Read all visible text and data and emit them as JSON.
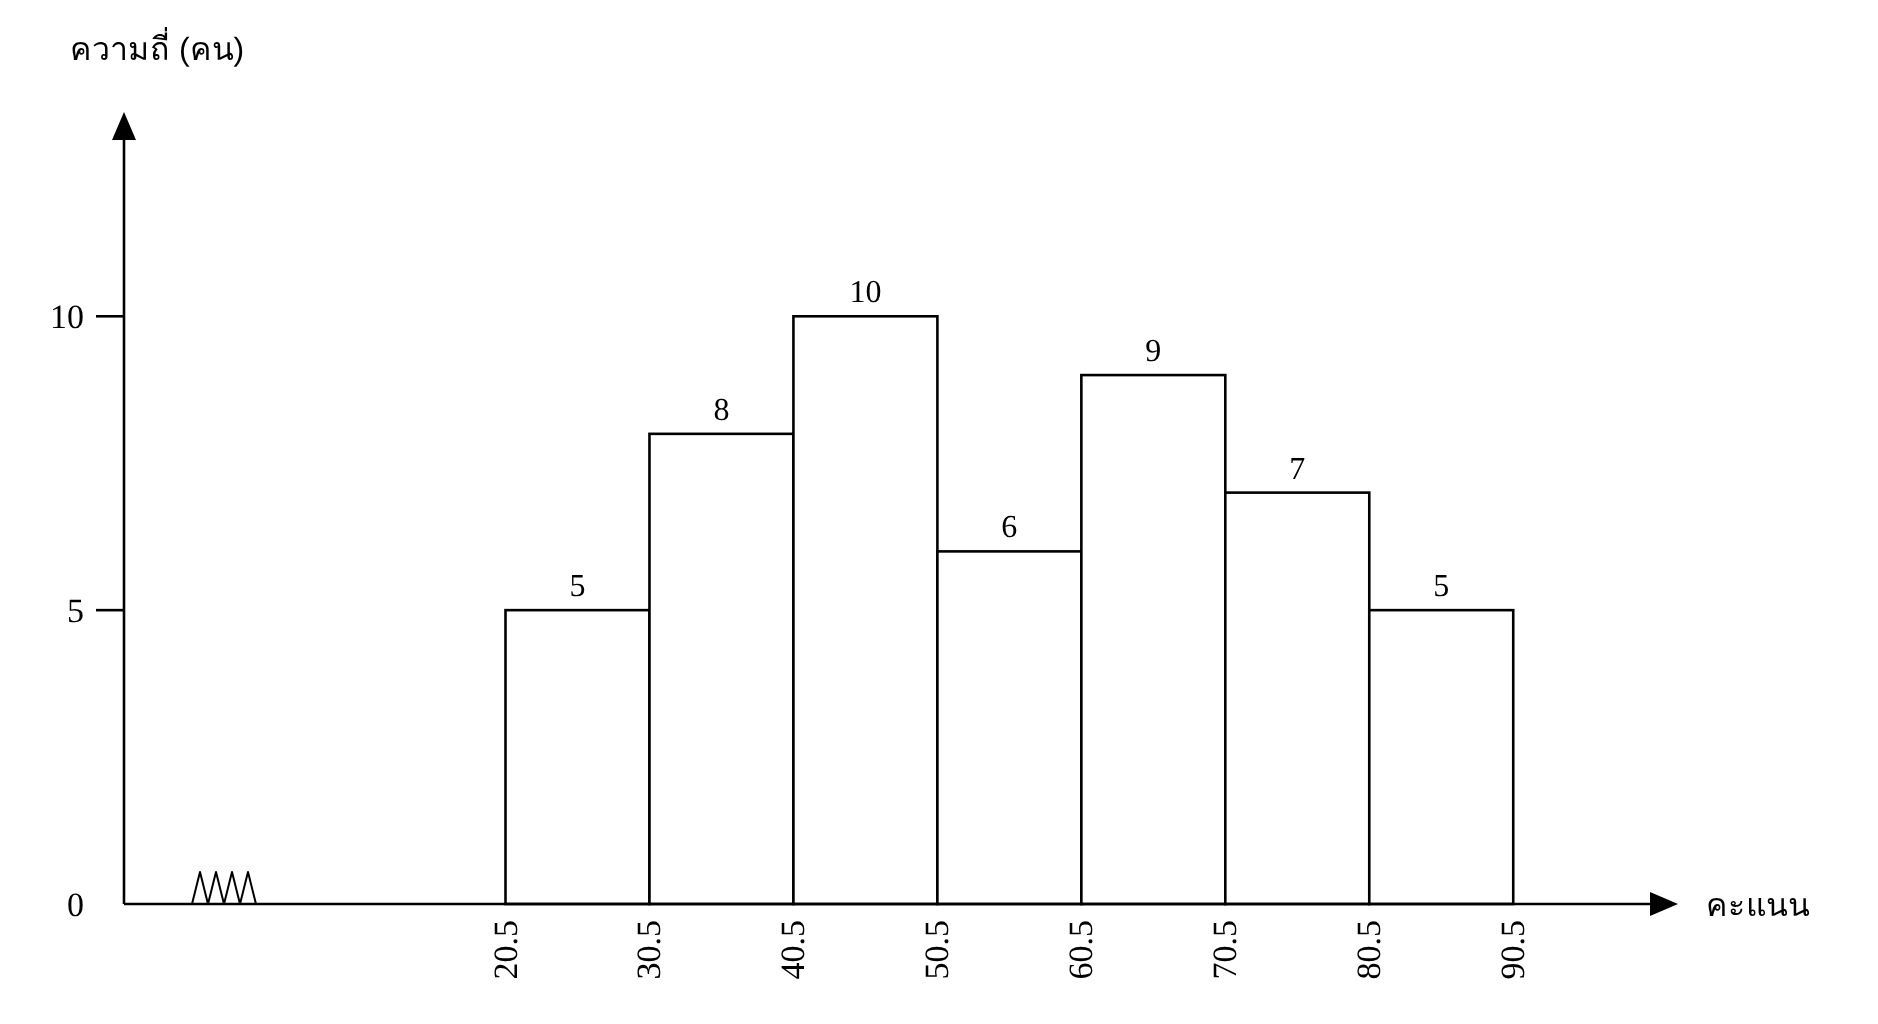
{
  "chart_data": {
    "type": "histogram",
    "bins": [
      20.5,
      30.5,
      40.5,
      50.5,
      60.5,
      70.5,
      80.5,
      90.5
    ],
    "values": [
      5,
      8,
      10,
      6,
      9,
      7,
      5
    ],
    "color": "#ffffff",
    "data_labels": true,
    "xlim": [
      -6,
      100
    ],
    "ylim": [
      0,
      13
    ],
    "xticks": [
      20.5,
      30.5,
      40.5,
      50.5,
      60.5,
      70.5,
      80.5,
      90.5
    ],
    "yticks": [
      0,
      5,
      10
    ],
    "xlabel": "คะแนน",
    "ylabel": "ความถี่ (คน)",
    "grid": false
  }
}
